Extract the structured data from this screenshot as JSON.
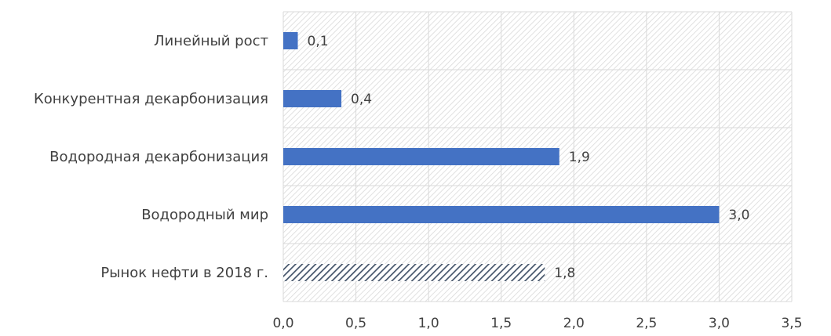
{
  "chart_data": {
    "type": "bar",
    "orientation": "horizontal",
    "categories": [
      "Линейный рост",
      "Конкурентная декарбонизация",
      "Водородная декарбонизация",
      "Водородный мир",
      "Рынок нефти в 2018 г."
    ],
    "values": [
      0.1,
      0.4,
      1.9,
      3.0,
      1.8
    ],
    "value_labels": [
      "0,1",
      "0,4",
      "1,9",
      "3,0",
      "1,8"
    ],
    "bar_styles": [
      "solid",
      "solid",
      "solid",
      "solid",
      "hatched"
    ],
    "x_ticks": [
      0.0,
      0.5,
      1.0,
      1.5,
      2.0,
      2.5,
      3.0,
      3.5
    ],
    "x_tick_labels": [
      "0,0",
      "0,5",
      "1,0",
      "1,5",
      "2,0",
      "2,5",
      "3,0",
      "3,5"
    ],
    "xlim": [
      0,
      3.5
    ],
    "title": "",
    "xlabel": "",
    "ylabel": "",
    "grid": true,
    "plot_background": "hatched-light-gray",
    "colors": {
      "bar": "#4472c4",
      "hatched_bar": "#44546a",
      "text": "#404040",
      "grid": "#d9d9d9",
      "background_hatch": "#d9d9d9"
    }
  }
}
